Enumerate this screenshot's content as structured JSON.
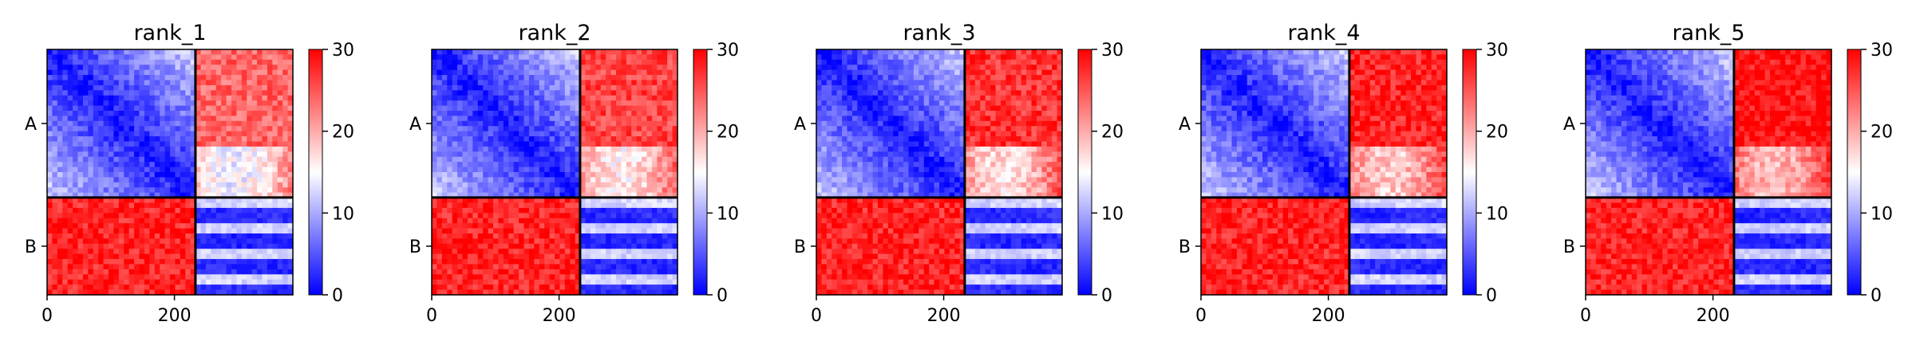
{
  "figure": {
    "panel_titles": [
      "rank_1",
      "rank_2",
      "rank_3",
      "rank_4",
      "rank_5"
    ]
  },
  "chart_data": {
    "type": "heatmap",
    "panels": [
      {
        "title": "rank_1",
        "chain_b_mean_value": 24
      },
      {
        "title": "rank_2",
        "chain_b_mean_value": 26
      },
      {
        "title": "rank_3",
        "chain_b_mean_value": 27
      },
      {
        "title": "rank_4",
        "chain_b_mean_value": 28
      },
      {
        "title": "rank_5",
        "chain_b_mean_value": 29
      }
    ],
    "shared": {
      "xticks": [
        0,
        200
      ],
      "xlim": [
        0,
        386
      ],
      "chain_boundary": 233,
      "ytick_labels": [
        "A",
        "B"
      ],
      "colorbar": {
        "min": 0,
        "max": 30,
        "ticks": [
          0,
          10,
          20,
          30
        ],
        "colormap": "bwr",
        "colors": {
          "low": "#0000ff",
          "mid": "#ffffff",
          "high": "#ff0000"
        }
      },
      "chain_separator_color": "#000000",
      "diagonal_value": 0,
      "interchain_value": 28
    }
  }
}
